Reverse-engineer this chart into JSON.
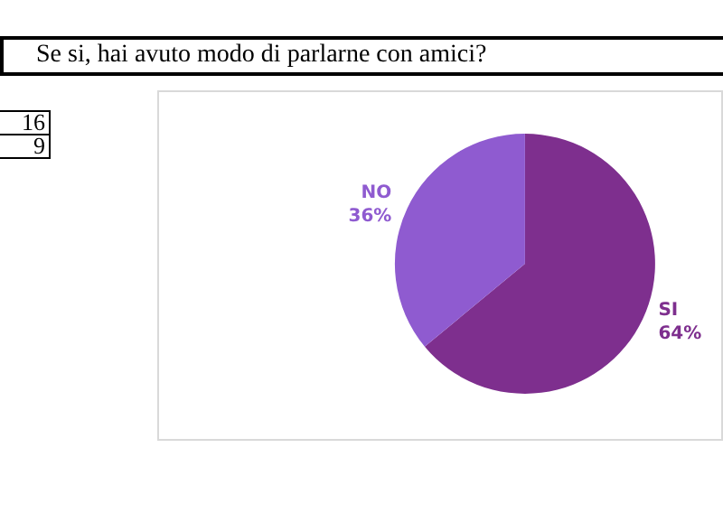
{
  "chart_data": {
    "type": "pie",
    "title": "Se si, hai avuto modo di parlarne con amici?",
    "categories": [
      "SI",
      "NO"
    ],
    "values": [
      64,
      36
    ],
    "value_labels": [
      "64%",
      "36%"
    ],
    "colors": [
      "#7e2f8e",
      "#8f5bd0"
    ],
    "annotations": [
      "16",
      "9"
    ],
    "legend": false
  }
}
